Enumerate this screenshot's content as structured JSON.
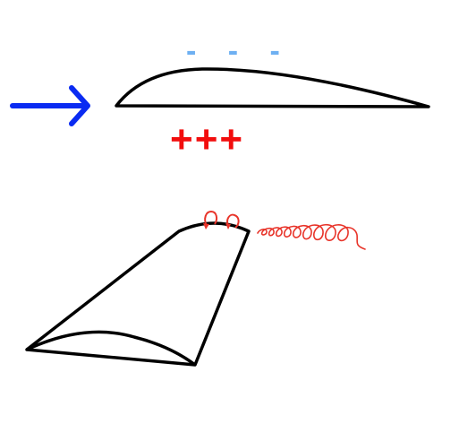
{
  "diagram": {
    "pressure_top": "- - -",
    "pressure_bottom": "+++",
    "colors": {
      "flow_arrow": "#0A2BF2",
      "low_pressure": "#6EB0F2",
      "high_pressure": "#F20D0D",
      "vortex": "#E8342A",
      "outline": "#000000"
    }
  }
}
